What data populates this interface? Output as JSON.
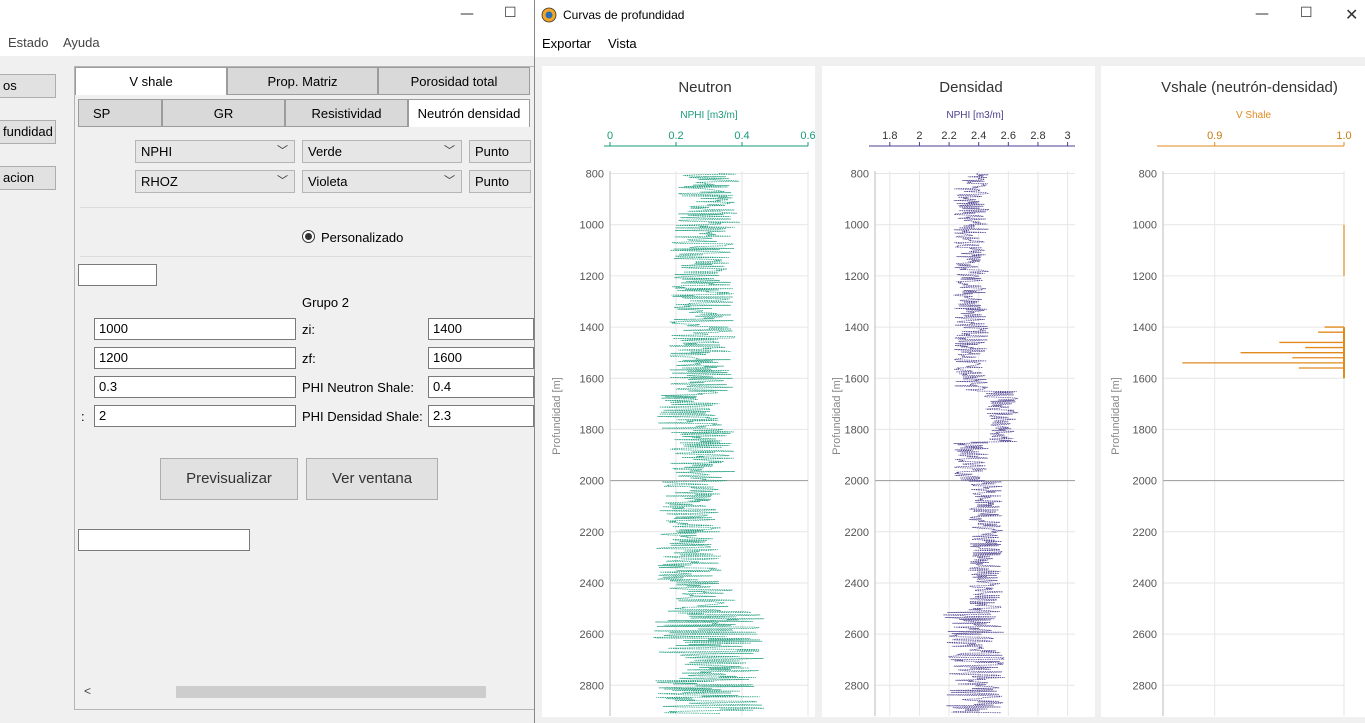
{
  "left": {
    "menu": [
      "Estado",
      "Ayuda"
    ],
    "side_buttons": [
      "os",
      "fundidad",
      "acion"
    ],
    "tabs_row1": [
      "V shale",
      "Prop. Matriz",
      "Porosidad total"
    ],
    "tabs_row2": [
      "SP",
      "GR",
      "Resistividad",
      "Neutrón densidad"
    ],
    "curve_rows": [
      {
        "curve": "NPHI",
        "color": "Verde",
        "style": "Punto"
      },
      {
        "curve": "RHOZ",
        "color": "Violeta",
        "style": "Punto"
      }
    ],
    "radio_label": "Personalizado",
    "group2_label": "Grupo 2",
    "params": [
      {
        "left_value": "1000",
        "label": "zi:",
        "right_value": "1400"
      },
      {
        "left_value": "1200",
        "label": "zf:",
        "right_value": "1600"
      },
      {
        "left_value": "0.3",
        "label": "PHI Neutron Shale:",
        "right_value": "0.4"
      },
      {
        "left_value": "2",
        "label": "PHI Densidad Shale:",
        "right_value": "2.3"
      }
    ],
    "partial_label": ":",
    "buttons": {
      "preview": "Previsualizar",
      "window": "Ver ventana"
    },
    "scroll_left": "<"
  },
  "right": {
    "title": "Curvas de profundidad",
    "menu": [
      "Exportar",
      "Vista"
    ],
    "panels": [
      {
        "title": "Neutron",
        "axis_label": "NPHI [m3/m]",
        "color": "#1a9a7a",
        "xticks": [
          "0",
          "0.2",
          "0.4",
          "0.6"
        ],
        "xmin": 0,
        "xmax": 0.6
      },
      {
        "title": "Densidad",
        "axis_label": "NPHI [m3/m]",
        "color": "#4a3f8c",
        "xticks": [
          "1.8",
          "2",
          "2.2",
          "2.4",
          "2.6",
          "2.8",
          "3"
        ],
        "xmin": 1.7,
        "xmax": 3.05
      },
      {
        "title": "Vshale (neutrón-densidad)",
        "axis_label": "V Shale",
        "color": "#e08a1e",
        "xticks": [
          "0.9",
          "1.0"
        ],
        "xmin": 0.86,
        "xmax": 1.0
      }
    ],
    "ylabel": "Profundidad [m]",
    "yticks": [
      "800",
      "1000",
      "1200",
      "1400",
      "1600",
      "1800",
      "2000",
      "2200",
      "2400",
      "2600",
      "2800"
    ]
  },
  "chart_data": [
    {
      "type": "line",
      "title": "Neutron",
      "xlabel": "NPHI [m3/m]",
      "ylabel": "Profundidad [m]",
      "xlim": [
        0,
        0.6
      ],
      "ylim": [
        2920,
        790
      ],
      "series": [
        {
          "values": "noisy log ~0.15–0.45 over depth 800–2920"
        }
      ]
    },
    {
      "type": "line",
      "title": "Densidad",
      "xlabel": "NPHI [m3/m]",
      "ylabel": "Profundidad [m]",
      "xlim": [
        1.7,
        3.05
      ],
      "ylim": [
        2920,
        790
      ],
      "series": [
        {
          "values": "noisy log ~2.2–2.6 over depth 800–2920"
        }
      ]
    },
    {
      "type": "bar",
      "title": "Vshale (neutrón-densidad)",
      "xlabel": "V Shale",
      "ylabel": "Profundidad [m]",
      "xlim": [
        0.86,
        1.0
      ],
      "ylim": [
        2920,
        790
      ],
      "series": [
        {
          "depth": [
            1400,
            1420,
            1460,
            1480,
            1500,
            1520,
            1540,
            1560
          ],
          "values": [
            0.985,
            0.98,
            0.95,
            0.97,
            0.92,
            0.96,
            0.875,
            0.965
          ]
        }
      ]
    }
  ]
}
